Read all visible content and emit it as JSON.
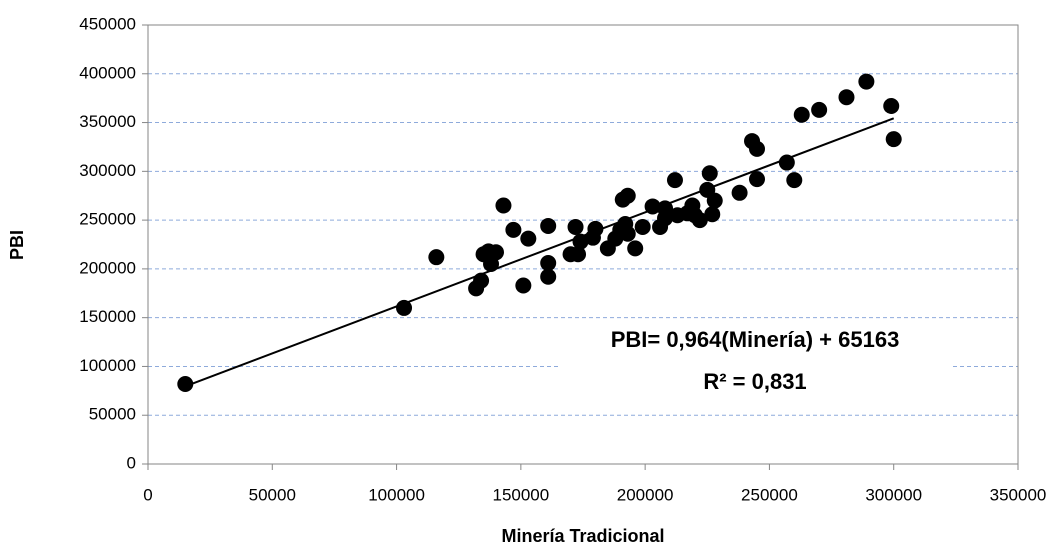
{
  "chart_data": {
    "type": "scatter",
    "x_label": "Minería Tradicional",
    "y_label": "PBI",
    "x": [
      15000,
      103000,
      116000,
      132000,
      134000,
      135000,
      137000,
      138000,
      140000,
      143000,
      147000,
      151000,
      153000,
      161000,
      161000,
      161000,
      170000,
      172000,
      173000,
      174000,
      179000,
      180000,
      185000,
      188000,
      190000,
      191000,
      192000,
      193000,
      193000,
      196000,
      199000,
      203000,
      206000,
      208000,
      208000,
      212000,
      213000,
      217000,
      219000,
      220000,
      222000,
      225000,
      226000,
      227000,
      228000,
      238000,
      243000,
      245000,
      245000,
      257000,
      260000,
      263000,
      270000,
      281000,
      289000,
      299000,
      300000
    ],
    "values": [
      82000,
      160000,
      212000,
      180000,
      188000,
      215000,
      218000,
      205000,
      217000,
      265000,
      240000,
      183000,
      231000,
      206000,
      192000,
      244000,
      215000,
      243000,
      215000,
      228000,
      232000,
      241000,
      221000,
      231000,
      240000,
      271000,
      246000,
      275000,
      236000,
      221000,
      243000,
      264000,
      243000,
      252000,
      262000,
      291000,
      255000,
      257000,
      265000,
      255000,
      250000,
      281000,
      298000,
      256000,
      270000,
      278000,
      331000,
      323000,
      292000,
      309000,
      291000,
      358000,
      363000,
      376000,
      392000,
      367000,
      333000
    ],
    "color": "#000000",
    "trendline": {
      "slope": 0.964,
      "intercept": 65163
    },
    "annotations": [
      "PBI= 0,964(Minería) + 65163",
      "R² = 0,831"
    ],
    "xlim": [
      0,
      350000
    ],
    "xticks": [
      0,
      50000,
      100000,
      150000,
      200000,
      250000,
      300000,
      350000
    ],
    "ylim": [
      0,
      450000
    ],
    "yticks": [
      0,
      50000,
      100000,
      150000,
      200000,
      250000,
      300000,
      350000,
      400000,
      450000
    ],
    "grid": true
  }
}
